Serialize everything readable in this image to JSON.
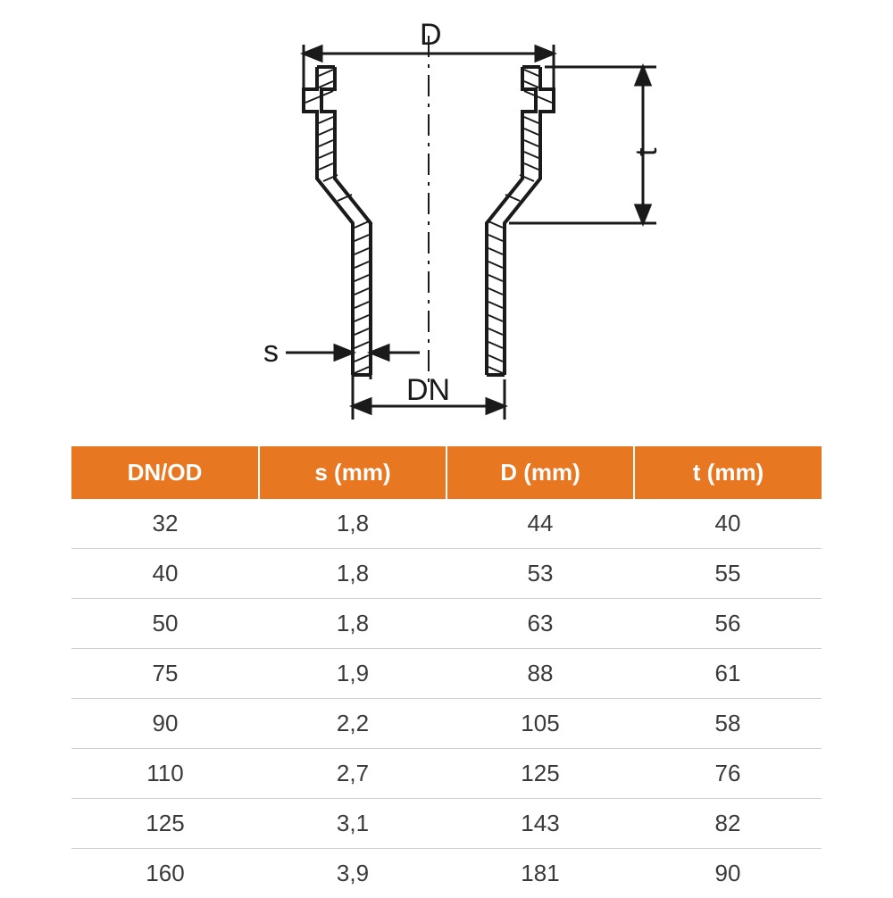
{
  "diagram": {
    "labels": {
      "D": "D",
      "t": "t",
      "s": "s",
      "DN": "DN"
    },
    "colors": {
      "stroke": "#1a1a1a",
      "fill": "#ffffff",
      "centerline": "#1a1a1a"
    },
    "label_fontsize": 30,
    "stroke_width": 4
  },
  "table": {
    "type": "table",
    "header_bg": "#e87722",
    "header_text_color": "#ffffff",
    "row_text_color": "#3a3a3a",
    "border_color": "#d0d0d0",
    "header_fontsize": 26,
    "cell_fontsize": 26,
    "columns": [
      "DN/OD",
      "s (mm)",
      "D (mm)",
      "t (mm)"
    ],
    "rows": [
      [
        "32",
        "1,8",
        "44",
        "40"
      ],
      [
        "40",
        "1,8",
        "53",
        "55"
      ],
      [
        "50",
        "1,8",
        "63",
        "56"
      ],
      [
        "75",
        "1,9",
        "88",
        "61"
      ],
      [
        "90",
        "2,2",
        "105",
        "58"
      ],
      [
        "110",
        "2,7",
        "125",
        "76"
      ],
      [
        "125",
        "3,1",
        "143",
        "82"
      ],
      [
        "160",
        "3,9",
        "181",
        "90"
      ]
    ]
  }
}
